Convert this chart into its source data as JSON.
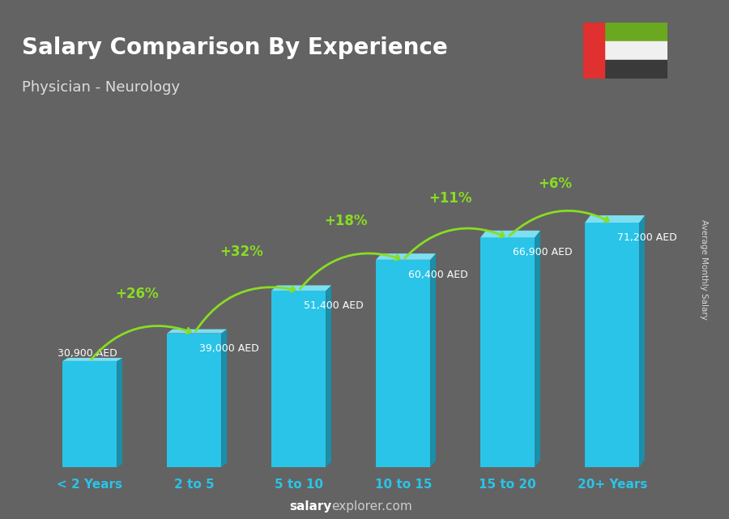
{
  "title": "Salary Comparison By Experience",
  "subtitle": "Physician - Neurology",
  "categories": [
    "< 2 Years",
    "2 to 5",
    "5 to 10",
    "10 to 15",
    "15 to 20",
    "20+ Years"
  ],
  "values": [
    30900,
    39000,
    51400,
    60400,
    66900,
    71200
  ],
  "value_labels": [
    "30,900 AED",
    "39,000 AED",
    "51,400 AED",
    "60,400 AED",
    "66,900 AED",
    "71,200 AED"
  ],
  "pct_changes": [
    "+26%",
    "+32%",
    "+18%",
    "+11%",
    "+6%"
  ],
  "bar_color_face": "#29C4E8",
  "bar_color_light": "#7DDFEF",
  "bar_color_dark": "#1A8FAA",
  "background_color": "#636363",
  "title_color": "#FFFFFF",
  "subtitle_color": "#DDDDDD",
  "ylabel": "Average Monthly Salary",
  "arrow_color": "#88DD22",
  "pct_color": "#88DD22",
  "value_label_color": "#FFFFFF",
  "xlabel_color": "#29C4E8",
  "footer_color_bold": "#FFFFFF",
  "footer_color_normal": "#CCCCCC"
}
